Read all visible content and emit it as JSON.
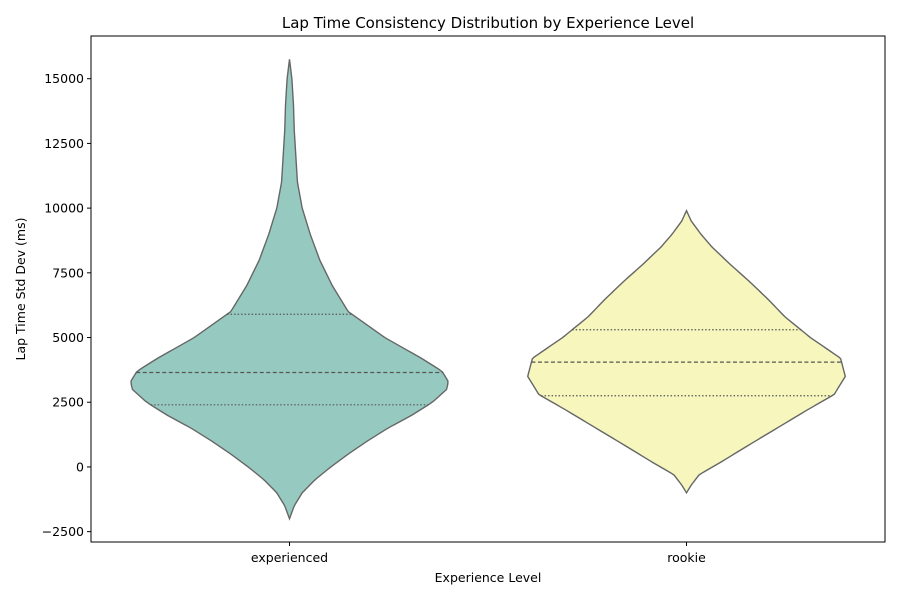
{
  "chart_data": {
    "type": "violin",
    "title": "Lap Time Consistency Distribution by Experience Level",
    "xlabel": "Experience Level",
    "ylabel": "Lap Time Std Dev (ms)",
    "ylim": [
      -2900,
      16650
    ],
    "yticks": [
      -2500,
      0,
      2500,
      5000,
      7500,
      10000,
      12500,
      15000
    ],
    "ytick_labels": [
      "−2500",
      "0",
      "2500",
      "5000",
      "7500",
      "10000",
      "12500",
      "15000"
    ],
    "grid": false,
    "categories": [
      "experienced",
      "rookie"
    ],
    "violins": [
      {
        "category": "experienced",
        "color": "#96cac0",
        "min": -2000,
        "max": 15750,
        "q1": 2400,
        "median": 3650,
        "q3": 5900,
        "profile": [
          [
            -2000,
            0.0
          ],
          [
            -1500,
            0.03
          ],
          [
            -1000,
            0.08
          ],
          [
            -500,
            0.16
          ],
          [
            0,
            0.26
          ],
          [
            500,
            0.37
          ],
          [
            1000,
            0.49
          ],
          [
            1500,
            0.62
          ],
          [
            2000,
            0.77
          ],
          [
            2500,
            0.9
          ],
          [
            3000,
            0.99
          ],
          [
            3300,
            1.0
          ],
          [
            3700,
            0.96
          ],
          [
            4200,
            0.83
          ],
          [
            5000,
            0.6
          ],
          [
            6000,
            0.37
          ],
          [
            7000,
            0.27
          ],
          [
            8000,
            0.19
          ],
          [
            9000,
            0.13
          ],
          [
            10000,
            0.08
          ],
          [
            11000,
            0.05
          ],
          [
            12000,
            0.04
          ],
          [
            13000,
            0.03
          ],
          [
            14000,
            0.025
          ],
          [
            15000,
            0.015
          ],
          [
            15750,
            0.0
          ]
        ]
      },
      {
        "category": "rookie",
        "color": "#f6f6bd",
        "min": -1000,
        "max": 9900,
        "q1": 2750,
        "median": 4050,
        "q3": 5300,
        "profile": [
          [
            -1000,
            0.0
          ],
          [
            -700,
            0.03
          ],
          [
            -300,
            0.08
          ],
          [
            200,
            0.22
          ],
          [
            800,
            0.38
          ],
          [
            1500,
            0.57
          ],
          [
            2200,
            0.76
          ],
          [
            2800,
            0.93
          ],
          [
            3500,
            1.0
          ],
          [
            4200,
            0.97
          ],
          [
            5000,
            0.78
          ],
          [
            5800,
            0.62
          ],
          [
            6500,
            0.51
          ],
          [
            7200,
            0.39
          ],
          [
            7800,
            0.28
          ],
          [
            8500,
            0.16
          ],
          [
            9000,
            0.09
          ],
          [
            9500,
            0.03
          ],
          [
            9900,
            0.0
          ]
        ]
      }
    ]
  }
}
